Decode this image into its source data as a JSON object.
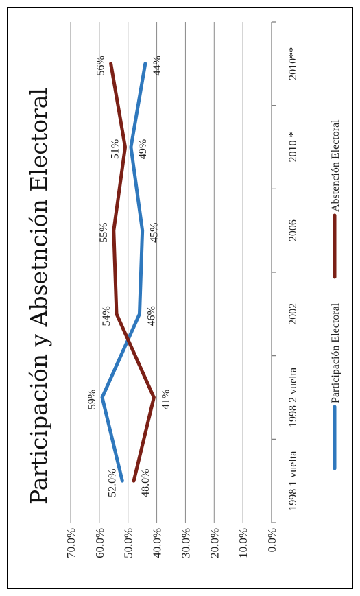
{
  "chart_data": {
    "type": "line",
    "title": "Participación y Absetnción Electoral",
    "categories": [
      "1998 1 vuelta",
      "1998 2 vuelta",
      "2002",
      "2006",
      "2010 *",
      "2010**"
    ],
    "ylim": [
      0,
      70
    ],
    "yticks": [
      "0.0%",
      "10.0%",
      "20.0%",
      "30.0%",
      "40.0%",
      "50.0%",
      "60.0%",
      "70.0%"
    ],
    "grid": true,
    "legend": "bottom",
    "orientation": "rotated 90° counter-clockwise",
    "series": [
      {
        "name": "Participación Electoral",
        "color": "#2f78bd",
        "values": [
          52,
          59,
          46,
          45,
          49,
          44
        ],
        "labels": [
          "52.0%",
          "59%",
          "46%",
          "45%",
          "49%",
          "44%"
        ]
      },
      {
        "name": "Abstención Electoral",
        "color": "#7b2016",
        "values": [
          48,
          41,
          54,
          55,
          51,
          56
        ],
        "labels": [
          "48.0%",
          "41%",
          "54%",
          "55%",
          "51%",
          "56%"
        ]
      }
    ]
  }
}
